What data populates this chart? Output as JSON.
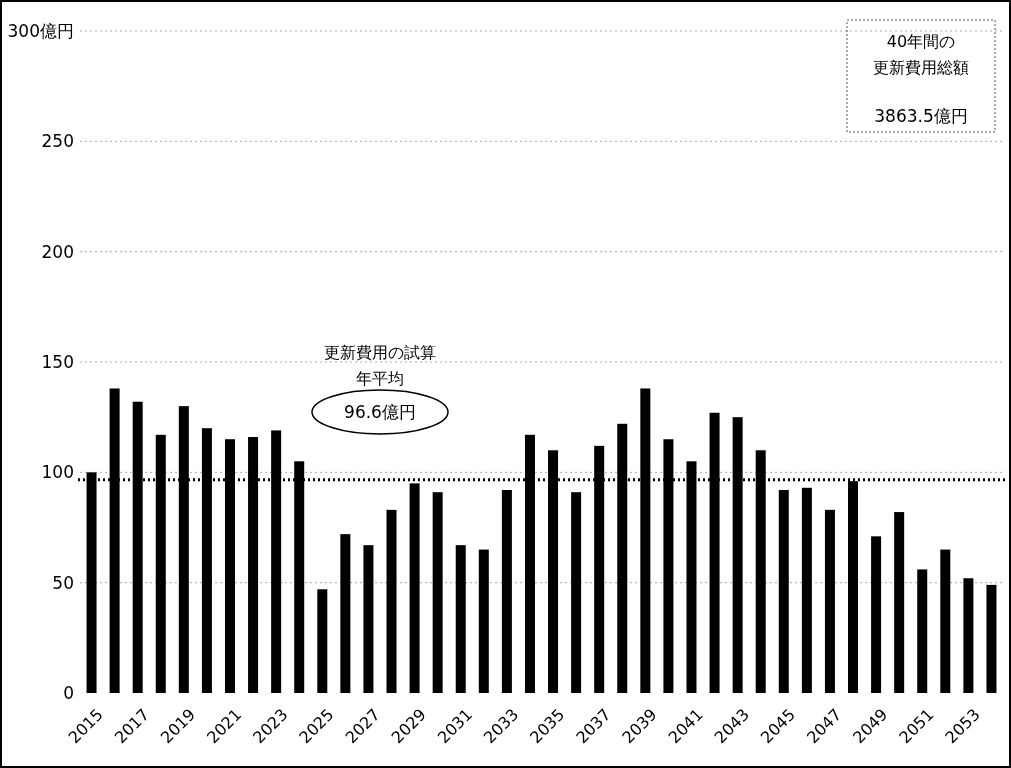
{
  "chart_data": {
    "type": "bar",
    "categories": [
      "2015",
      null,
      "2017",
      null,
      "2019",
      null,
      "2021",
      null,
      "2023",
      null,
      "2025",
      null,
      "2027",
      null,
      "2029",
      null,
      "2031",
      null,
      "2033",
      null,
      "2035",
      null,
      "2037",
      null,
      "2039",
      null,
      "2041",
      null,
      "2043",
      null,
      "2045",
      null,
      "2047",
      null,
      "2049",
      null,
      "2051",
      null,
      "2053",
      null
    ],
    "values": [
      100,
      138,
      132,
      117,
      130,
      120,
      115,
      116,
      119,
      105,
      47,
      72,
      67,
      83,
      95,
      91,
      67,
      65,
      92,
      117,
      110,
      91,
      112,
      122,
      138,
      115,
      105,
      127,
      125,
      110,
      92,
      93,
      83,
      96,
      71,
      82,
      56,
      65,
      52,
      49
    ],
    "color": "#000000",
    "ylim": [
      0,
      300
    ],
    "yticks": [
      0,
      50,
      100,
      150,
      200,
      250,
      {
        "value": 300,
        "label": "300億円"
      }
    ],
    "grid": "y",
    "ref_lines": [
      {
        "axis": "y",
        "value": 96.6,
        "color": "#000000",
        "line_style": "dotted"
      }
    ],
    "annotations": [
      "更新費用の試算",
      "年平均",
      "96.6億円",
      "40年間の",
      "更新費用総額",
      "3863.5億円"
    ]
  }
}
